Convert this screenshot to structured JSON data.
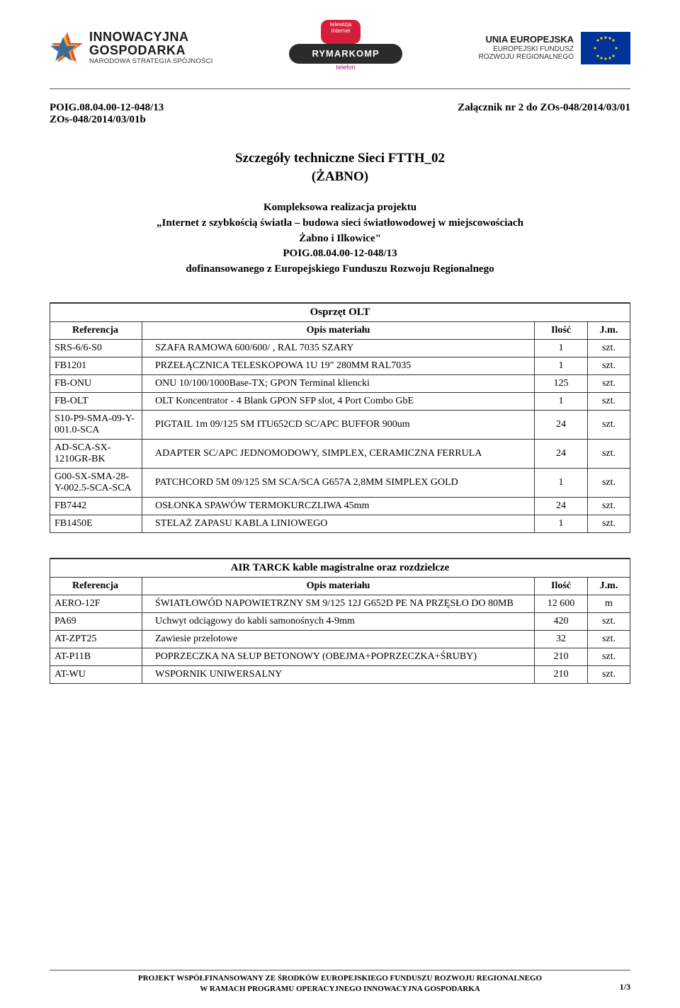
{
  "logos": {
    "left": {
      "line1": "INNOWACYJNA",
      "line2": "GOSPODARKA",
      "line3": "NARODOWA STRATEGIA SPÓJNOŚCI"
    },
    "center": {
      "bubble_l1": "telewizja",
      "bubble_l2": "internet",
      "pill": "RYMARKOMP",
      "sub": "telefon"
    },
    "right": {
      "line1": "UNIA EUROPEJSKA",
      "line2": "EUROPEJSKI FUNDUSZ",
      "line3": "ROZWOJU REGIONALNEGO"
    }
  },
  "meta": {
    "left_l1": "POIG.08.04.00-12-048/13",
    "left_l2": "ZOs-048/2014/03/01b",
    "right": "Załącznik nr 2 do ZOs-048/2014/03/01"
  },
  "title": "Szczegóły techniczne Sieci FTTH_02",
  "subtitle": "(ŻABNO)",
  "project": {
    "l1": "Kompleksowa realizacja projektu",
    "l2": "„Internet z szybkością światła – budowa  sieci światłowodowej w miejscowościach",
    "l3": "Żabno i Ilkowice\"",
    "l4": "POIG.08.04.00-12-048/13",
    "l5": "dofinansowanego z Europejskiego Funduszu Rozwoju Regionalnego"
  },
  "table1": {
    "section": "Osprzęt OLT",
    "cols": {
      "ref": "Referencja",
      "desc": "Opis materiału",
      "qty": "Ilość",
      "unit": "J.m."
    },
    "rows": [
      {
        "ref": "SRS-6/6-S0",
        "desc": "SZAFA RAMOWA 600/600/ , RAL 7035 SZARY",
        "qty": "1",
        "unit": "szt."
      },
      {
        "ref": "FB1201",
        "desc": "PRZEŁĄCZNICA TELESKOPOWA 1U 19\" 280MM RAL7035",
        "qty": "1",
        "unit": "szt."
      },
      {
        "ref": "FB-ONU",
        "desc": "ONU  10/100/1000Base-TX; GPON Terminal kliencki",
        "qty": "125",
        "unit": "szt."
      },
      {
        "ref": "FB-OLT",
        "desc": "OLT Koncentrator - 4 Blank GPON SFP slot, 4 Port Combo GbE",
        "qty": "1",
        "unit": "szt."
      },
      {
        "ref": "S10-P9-SMA-09-Y-001.0-SCA",
        "desc": "PIGTAIL 1m 09/125 SM  ITU652CD SC/APC BUFFOR 900um",
        "qty": "24",
        "unit": "szt."
      },
      {
        "ref": "AD-SCA-SX-1210GR-BK",
        "desc": "ADAPTER SC/APC JEDNOMODOWY, SIMPLEX, CERAMICZNA FERRULA",
        "qty": "24",
        "unit": "szt."
      },
      {
        "ref": "G00-SX-SMA-28-Y-002.5-SCA-SCA",
        "desc": "PATCHCORD 5M 09/125 SM SCA/SCA G657A 2,8MM SIMPLEX GOLD",
        "qty": "1",
        "unit": "szt."
      },
      {
        "ref": "FB7442",
        "desc": "OSŁONKA SPAWÓW TERMOKURCZLIWA 45mm",
        "qty": "24",
        "unit": "szt."
      },
      {
        "ref": "FB1450E",
        "desc": "STELAŻ ZAPASU KABLA LINIOWEGO",
        "qty": "1",
        "unit": "szt."
      }
    ]
  },
  "table2": {
    "section": "AIR TARCK kable magistralne oraz rozdzielcze",
    "cols": {
      "ref": "Referencja",
      "desc": "Opis materiału",
      "qty": "Ilość",
      "unit": "J.m."
    },
    "rows": [
      {
        "ref": "AERO-12F",
        "desc": "ŚWIATŁOWÓD NAPOWIETRZNY  SM 9/125 12J G652D PE NA PRZĘSŁO DO 80MB",
        "qty": "12 600",
        "unit": "m"
      },
      {
        "ref": "PA69",
        "desc": "Uchwyt odciągowy do kabli samonośnych 4-9mm",
        "qty": "420",
        "unit": "szt."
      },
      {
        "ref": "AT-ZPT25",
        "desc": "Zawiesie przelotowe",
        "qty": "32",
        "unit": "szt."
      },
      {
        "ref": "AT-P11B",
        "desc": "POPRZECZKA NA SŁUP BETONOWY (OBEJMA+POPRZECZKA+ŚRUBY)",
        "qty": "210",
        "unit": "szt."
      },
      {
        "ref": "AT-WU",
        "desc": "WSPORNIK UNIWERSALNY",
        "qty": "210",
        "unit": "szt."
      }
    ]
  },
  "footer": {
    "l1": "PROJEKT WSPÓŁFINANSOWANY ZE ŚRODKÓW EUROPEJSKIEGO FUNDUSZU ROZWOJU REGIONALNEGO",
    "l2": "W RAMACH PROGRAMU OPERACYJNEGO INNOWACYJNA GOSPODARKA",
    "page": "1/3"
  },
  "colors": {
    "text": "#000000",
    "border": "#333333",
    "rule": "#555555",
    "eu_blue": "#003399",
    "eu_gold": "#ffcc00",
    "bubble_red": "#d41e3c",
    "pill_dark": "#2b2b2b",
    "magenta": "#a3248f"
  }
}
